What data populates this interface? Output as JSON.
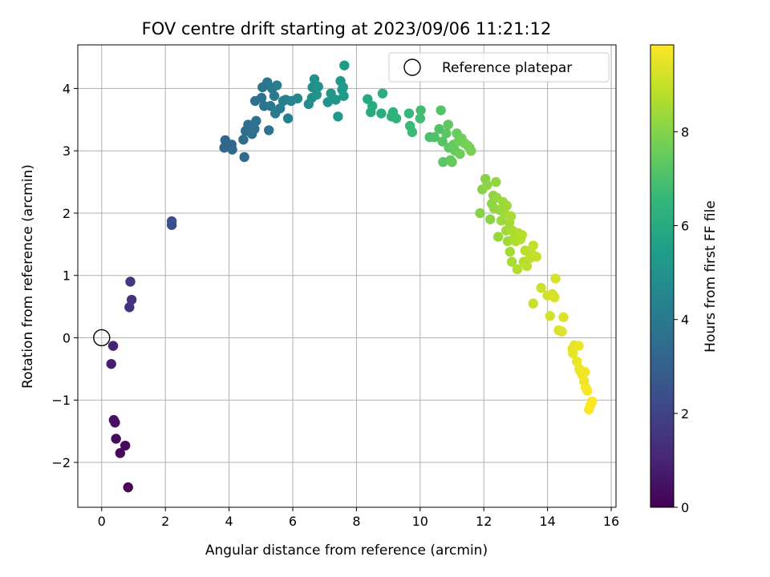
{
  "chart_data": {
    "type": "scatter",
    "title": "FOV centre drift starting at 2023/09/06 11:21:12",
    "xlabel": "Angular distance from reference (arcmin)",
    "ylabel": "Rotation from reference (arcmin)",
    "xlim": [
      -0.75,
      16.15
    ],
    "ylim": [
      -2.72,
      4.7
    ],
    "xticks": [
      0,
      2,
      4,
      6,
      8,
      10,
      12,
      14,
      16
    ],
    "yticks": [
      -2,
      -1,
      0,
      1,
      2,
      3,
      4
    ],
    "xtick_labels": [
      "0",
      "2",
      "4",
      "6",
      "8",
      "10",
      "12",
      "14",
      "16"
    ],
    "ytick_labels": [
      "−2",
      "−1",
      "0",
      "1",
      "2",
      "3",
      "4"
    ],
    "grid": true,
    "legend": {
      "position": "top-right",
      "entries": [
        {
          "label": "Reference platepar",
          "marker": "open-circle"
        }
      ]
    },
    "reference_point": {
      "x": 0,
      "y": 0
    },
    "colorbar": {
      "label": "Hours from first FF file",
      "colormap": "viridis",
      "range": [
        0,
        9.85
      ],
      "ticks": [
        0,
        2,
        4,
        6,
        8
      ],
      "tick_labels": [
        "0",
        "2",
        "4",
        "6",
        "8"
      ]
    },
    "colormap_stops": [
      "#440154",
      "#482878",
      "#3e4989",
      "#31688e",
      "#26828e",
      "#1f9e89",
      "#35b779",
      "#6ece58",
      "#b5de2b",
      "#fde725"
    ],
    "points": [
      [
        0.83,
        -2.4,
        0.1
      ],
      [
        0.58,
        -1.85,
        0.2
      ],
      [
        0.74,
        -1.73,
        0.3
      ],
      [
        0.45,
        -1.62,
        0.35
      ],
      [
        0.42,
        -1.36,
        0.45
      ],
      [
        0.38,
        -1.32,
        0.5
      ],
      [
        0.3,
        -0.42,
        0.8
      ],
      [
        0.36,
        -0.13,
        0.9
      ],
      [
        0.87,
        0.49,
        1.4
      ],
      [
        0.94,
        0.61,
        1.5
      ],
      [
        0.9,
        0.9,
        1.55
      ],
      [
        2.2,
        1.81,
        2.4
      ],
      [
        2.2,
        1.87,
        2.45
      ],
      [
        3.85,
        3.05,
        3.2
      ],
      [
        3.88,
        3.17,
        3.25
      ],
      [
        4.1,
        3.02,
        3.3
      ],
      [
        4.08,
        3.1,
        3.3
      ],
      [
        4.48,
        2.9,
        3.4
      ],
      [
        4.45,
        3.18,
        3.45
      ],
      [
        4.52,
        3.32,
        3.5
      ],
      [
        4.6,
        3.42,
        3.55
      ],
      [
        4.72,
        3.27,
        3.6
      ],
      [
        4.8,
        3.35,
        3.6
      ],
      [
        4.85,
        3.48,
        3.65
      ],
      [
        4.82,
        3.8,
        3.7
      ],
      [
        5.02,
        3.85,
        3.75
      ],
      [
        5.1,
        3.72,
        3.8
      ],
      [
        5.25,
        3.33,
        3.8
      ],
      [
        5.05,
        4.02,
        3.85
      ],
      [
        5.2,
        4.1,
        3.9
      ],
      [
        5.35,
        4.0,
        3.95
      ],
      [
        5.42,
        3.88,
        4.0
      ],
      [
        5.3,
        3.72,
        4.05
      ],
      [
        5.45,
        3.6,
        4.1
      ],
      [
        5.5,
        4.05,
        4.15
      ],
      [
        5.6,
        3.68,
        4.2
      ],
      [
        5.7,
        3.8,
        4.25
      ],
      [
        5.78,
        3.82,
        4.3
      ],
      [
        5.85,
        3.52,
        4.35
      ],
      [
        5.95,
        3.8,
        4.45
      ],
      [
        6.15,
        3.84,
        4.55
      ],
      [
        6.5,
        3.75,
        4.8
      ],
      [
        6.6,
        3.85,
        4.85
      ],
      [
        6.62,
        4.02,
        4.9
      ],
      [
        6.68,
        4.15,
        4.95
      ],
      [
        6.75,
        3.9,
        5.0
      ],
      [
        6.8,
        4.03,
        5.05
      ],
      [
        7.1,
        3.78,
        5.1
      ],
      [
        7.2,
        3.92,
        5.15
      ],
      [
        7.35,
        3.82,
        5.2
      ],
      [
        7.42,
        3.55,
        5.25
      ],
      [
        7.5,
        4.12,
        5.25
      ],
      [
        7.55,
        3.98,
        5.3
      ],
      [
        7.6,
        3.88,
        5.35
      ],
      [
        7.58,
        4.02,
        5.35
      ],
      [
        7.62,
        4.37,
        5.4
      ],
      [
        8.35,
        3.83,
        5.9
      ],
      [
        8.5,
        3.72,
        6.0
      ],
      [
        8.45,
        3.62,
        6.0
      ],
      [
        8.82,
        3.92,
        6.1
      ],
      [
        8.78,
        3.6,
        6.15
      ],
      [
        9.1,
        3.55,
        6.25
      ],
      [
        9.15,
        3.62,
        6.3
      ],
      [
        9.25,
        3.52,
        6.35
      ],
      [
        9.65,
        3.6,
        6.6
      ],
      [
        9.68,
        3.4,
        6.65
      ],
      [
        9.75,
        3.3,
        6.7
      ],
      [
        10.0,
        3.52,
        6.8
      ],
      [
        10.02,
        3.65,
        6.85
      ],
      [
        10.3,
        3.22,
        7.0
      ],
      [
        10.45,
        3.22,
        7.05
      ],
      [
        10.6,
        3.35,
        7.1
      ],
      [
        10.65,
        3.65,
        7.15
      ],
      [
        10.7,
        3.15,
        7.2
      ],
      [
        10.72,
        2.82,
        7.25
      ],
      [
        10.82,
        3.28,
        7.3
      ],
      [
        10.88,
        3.42,
        7.35
      ],
      [
        10.9,
        3.05,
        7.35
      ],
      [
        10.95,
        2.85,
        7.4
      ],
      [
        11.0,
        2.82,
        7.45
      ],
      [
        11.05,
        3.1,
        7.5
      ],
      [
        11.1,
        3.0,
        7.5
      ],
      [
        11.15,
        3.28,
        7.55
      ],
      [
        11.2,
        3.15,
        7.6
      ],
      [
        11.25,
        2.95,
        7.6
      ],
      [
        11.3,
        3.2,
        7.65
      ],
      [
        11.4,
        3.12,
        7.7
      ],
      [
        11.5,
        3.08,
        7.75
      ],
      [
        11.6,
        3.0,
        7.8
      ],
      [
        11.55,
        3.05,
        7.8
      ],
      [
        11.88,
        2.0,
        8.0
      ],
      [
        11.95,
        2.38,
        8.0
      ],
      [
        12.05,
        2.55,
        8.05
      ],
      [
        12.1,
        2.45,
        8.1
      ],
      [
        12.2,
        1.9,
        8.1
      ],
      [
        12.25,
        2.15,
        8.15
      ],
      [
        12.3,
        2.28,
        8.15
      ],
      [
        12.32,
        2.08,
        8.2
      ],
      [
        12.38,
        2.5,
        8.2
      ],
      [
        12.4,
        2.25,
        8.25
      ],
      [
        12.45,
        1.62,
        8.3
      ],
      [
        12.5,
        2.05,
        8.3
      ],
      [
        12.55,
        1.88,
        8.35
      ],
      [
        12.6,
        2.18,
        8.35
      ],
      [
        12.65,
        2.0,
        8.4
      ],
      [
        12.7,
        1.72,
        8.4
      ],
      [
        12.72,
        2.12,
        8.45
      ],
      [
        12.75,
        1.55,
        8.45
      ],
      [
        12.8,
        1.85,
        8.5
      ],
      [
        12.82,
        1.38,
        8.5
      ],
      [
        12.85,
        1.95,
        8.55
      ],
      [
        12.88,
        1.22,
        8.55
      ],
      [
        12.9,
        1.72,
        8.6
      ],
      [
        12.95,
        1.6,
        8.6
      ],
      [
        13.0,
        1.55,
        8.65
      ],
      [
        13.05,
        1.1,
        8.7
      ],
      [
        13.08,
        1.68,
        8.7
      ],
      [
        13.15,
        1.58,
        8.75
      ],
      [
        13.2,
        1.65,
        8.75
      ],
      [
        13.25,
        1.22,
        8.8
      ],
      [
        13.3,
        1.4,
        8.8
      ],
      [
        13.35,
        1.15,
        8.85
      ],
      [
        13.45,
        1.28,
        8.9
      ],
      [
        13.5,
        1.35,
        8.9
      ],
      [
        13.55,
        1.48,
        8.95
      ],
      [
        13.65,
        1.3,
        9.0
      ],
      [
        13.55,
        0.55,
        9.05
      ],
      [
        13.8,
        0.8,
        9.1
      ],
      [
        14.0,
        0.68,
        9.15
      ],
      [
        14.08,
        0.35,
        9.2
      ],
      [
        14.15,
        0.7,
        9.2
      ],
      [
        14.25,
        0.95,
        9.25
      ],
      [
        14.22,
        0.65,
        9.25
      ],
      [
        14.35,
        0.12,
        9.3
      ],
      [
        14.45,
        0.1,
        9.35
      ],
      [
        14.5,
        0.33,
        9.35
      ],
      [
        14.78,
        -0.18,
        9.45
      ],
      [
        14.8,
        -0.25,
        9.5
      ],
      [
        14.85,
        -0.12,
        9.5
      ],
      [
        14.92,
        -0.38,
        9.55
      ],
      [
        14.98,
        -0.13,
        9.55
      ],
      [
        15.0,
        -0.5,
        9.6
      ],
      [
        15.05,
        -0.55,
        9.6
      ],
      [
        15.1,
        -0.6,
        9.65
      ],
      [
        15.15,
        -0.7,
        9.65
      ],
      [
        15.2,
        -0.8,
        9.7
      ],
      [
        15.18,
        -0.55,
        9.7
      ],
      [
        15.25,
        -0.85,
        9.75
      ],
      [
        15.3,
        -1.15,
        9.8
      ],
      [
        15.35,
        -1.08,
        9.8
      ],
      [
        15.4,
        -1.02,
        9.85
      ]
    ]
  }
}
